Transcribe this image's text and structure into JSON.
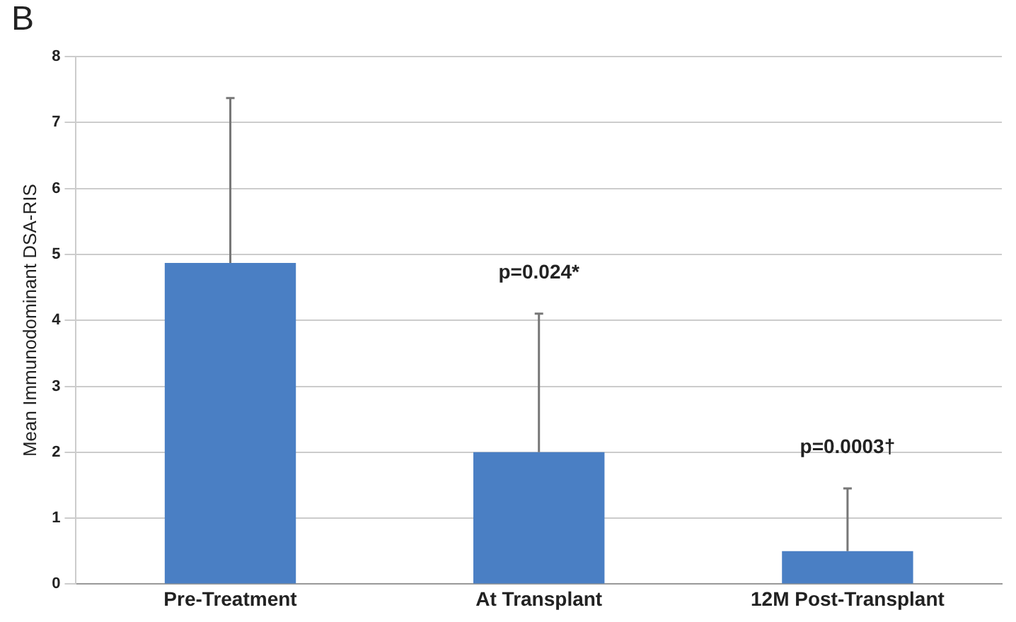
{
  "chart_data": {
    "type": "bar",
    "ylabel": "Mean Immunodominant DSA-RIS",
    "categories": [
      "Pre-Treatment",
      "At Transplant",
      "12M Post-Transplant"
    ],
    "values": [
      4.87,
      2.0,
      0.5
    ],
    "errors": [
      [
        4.87,
        7.37
      ],
      [
        2.0,
        4.1
      ],
      [
        0.5,
        1.45
      ]
    ],
    "color": "#4a7fc4",
    "ylim": [
      0,
      8
    ],
    "yticks": [
      0,
      1,
      2,
      3,
      4,
      5,
      6,
      7,
      8
    ],
    "grid": "y",
    "annotations": [
      "B",
      "p=0.024*",
      "p=0.0003†"
    ]
  }
}
